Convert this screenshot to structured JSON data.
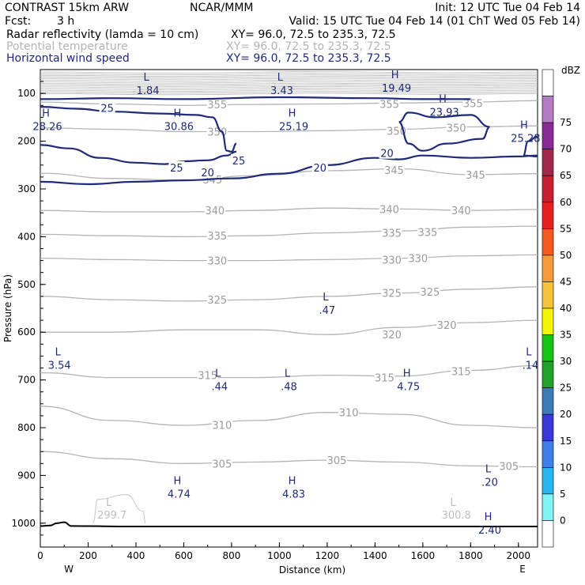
{
  "header": {
    "model": "CONTRAST 15km ARW",
    "center": "NCAR/MMM",
    "init": "Init: 12 UTC Tue 04 Feb 14",
    "fcst_label": "Fcst:",
    "fcst_value": "3 h",
    "valid": "Valid: 15 UTC Tue 04 Feb 14 (01 ChT Wed 05 Feb 14)"
  },
  "fields": [
    {
      "name": "Radar reflectivity (lamda = 10 cm)",
      "xy": "XY=  96.0, 72.5 to 235.3, 72.5",
      "color": "#000000"
    },
    {
      "name": "Potential temperature",
      "xy": "XY=  96.0, 72.5 to 235.3, 72.5",
      "color": "#b4b4b4"
    },
    {
      "name": "Horizontal wind speed",
      "xy": "XY=  96.0, 72.5 to 235.3, 72.5",
      "color": "#1f2a7a"
    }
  ],
  "chart_data": {
    "type": "cross-section contour",
    "xlabel": "Distance (km)",
    "ylabel": "Pressure (hPa)",
    "xlim": [
      0,
      2080
    ],
    "ylim": [
      1050,
      50
    ],
    "xticks": [
      0,
      200,
      400,
      600,
      800,
      1000,
      1200,
      1400,
      1600,
      1800,
      2000
    ],
    "yticks": [
      100,
      200,
      300,
      400,
      500,
      600,
      700,
      800,
      900,
      1000
    ],
    "x_end_labels": {
      "left": "W",
      "right": "E"
    },
    "theta_contours": [
      {
        "label": "305",
        "points": [
          [
            0,
            850
          ],
          [
            300,
            865
          ],
          [
            600,
            875
          ],
          [
            900,
            872
          ],
          [
            1200,
            868
          ],
          [
            1500,
            872
          ],
          [
            1800,
            880
          ],
          [
            2080,
            882
          ]
        ],
        "labels_at": [
          [
            760,
            875
          ],
          [
            1240,
            868
          ],
          [
            1960,
            880
          ]
        ]
      },
      {
        "label": "310",
        "points": [
          [
            0,
            755
          ],
          [
            300,
            785
          ],
          [
            600,
            795
          ],
          [
            900,
            785
          ],
          [
            1200,
            768
          ],
          [
            1500,
            772
          ],
          [
            1800,
            795
          ],
          [
            2080,
            800
          ]
        ],
        "labels_at": [
          [
            760,
            794
          ],
          [
            1290,
            768
          ]
        ]
      },
      {
        "label": "315",
        "points": [
          [
            0,
            685
          ],
          [
            300,
            695
          ],
          [
            600,
            695
          ],
          [
            900,
            695
          ],
          [
            1200,
            690
          ],
          [
            1500,
            692
          ],
          [
            1800,
            680
          ],
          [
            2080,
            670
          ]
        ],
        "labels_at": [
          [
            700,
            690
          ],
          [
            1440,
            695
          ],
          [
            1760,
            682
          ]
        ]
      },
      {
        "label": "320",
        "points": [
          [
            0,
            600
          ],
          [
            300,
            600
          ],
          [
            600,
            595
          ],
          [
            900,
            595
          ],
          [
            1200,
            605
          ],
          [
            1500,
            590
          ],
          [
            1800,
            580
          ],
          [
            2080,
            575
          ]
        ],
        "labels_at": [
          [
            1470,
            605
          ],
          [
            1700,
            585
          ]
        ]
      },
      {
        "label": "325",
        "points": [
          [
            0,
            525
          ],
          [
            300,
            532
          ],
          [
            600,
            535
          ],
          [
            900,
            532
          ],
          [
            1200,
            525
          ],
          [
            1500,
            518
          ],
          [
            1800,
            510
          ],
          [
            2080,
            505
          ]
        ],
        "labels_at": [
          [
            740,
            532
          ],
          [
            1470,
            518
          ],
          [
            1630,
            515
          ]
        ]
      },
      {
        "label": "330",
        "points": [
          [
            0,
            445
          ],
          [
            300,
            448
          ],
          [
            600,
            450
          ],
          [
            900,
            450
          ],
          [
            1200,
            448
          ],
          [
            1500,
            445
          ],
          [
            1800,
            440
          ],
          [
            2080,
            438
          ]
        ],
        "labels_at": [
          [
            740,
            450
          ],
          [
            1470,
            448
          ],
          [
            1580,
            445
          ]
        ]
      },
      {
        "label": "335",
        "points": [
          [
            0,
            395
          ],
          [
            300,
            398
          ],
          [
            600,
            400
          ],
          [
            900,
            398
          ],
          [
            1200,
            392
          ],
          [
            1500,
            388
          ],
          [
            1800,
            380
          ],
          [
            2080,
            378
          ]
        ],
        "labels_at": [
          [
            740,
            398
          ],
          [
            1470,
            392
          ],
          [
            1620,
            390
          ]
        ]
      },
      {
        "label": "340",
        "points": [
          [
            0,
            345
          ],
          [
            300,
            348
          ],
          [
            600,
            348
          ],
          [
            900,
            345
          ],
          [
            1200,
            340
          ],
          [
            1500,
            342
          ],
          [
            1800,
            345
          ],
          [
            2080,
            343
          ]
        ],
        "labels_at": [
          [
            730,
            345
          ],
          [
            1460,
            342
          ],
          [
            1760,
            345
          ]
        ]
      },
      {
        "label": "345",
        "points": [
          [
            0,
            267
          ],
          [
            300,
            278
          ],
          [
            600,
            282
          ],
          [
            900,
            272
          ],
          [
            1200,
            262
          ],
          [
            1500,
            258
          ],
          [
            1800,
            270
          ],
          [
            2080,
            268
          ]
        ],
        "labels_at": [
          [
            720,
            280
          ],
          [
            1480,
            260
          ],
          [
            1820,
            270
          ]
        ]
      },
      {
        "label": "350",
        "points": [
          [
            0,
            172
          ],
          [
            300,
            175
          ],
          [
            600,
            180
          ],
          [
            900,
            180
          ],
          [
            1200,
            178
          ],
          [
            1500,
            175
          ],
          [
            1800,
            170
          ],
          [
            2080,
            168
          ]
        ],
        "labels_at": [
          [
            740,
            180
          ],
          [
            1490,
            178
          ],
          [
            1740,
            172
          ]
        ]
      },
      {
        "label": "355",
        "points": [
          [
            0,
            118
          ],
          [
            300,
            122
          ],
          [
            600,
            125
          ],
          [
            900,
            123
          ],
          [
            1200,
            122
          ],
          [
            1500,
            120
          ],
          [
            1800,
            118
          ],
          [
            2080,
            115
          ]
        ],
        "labels_at": [
          [
            740,
            123
          ],
          [
            1460,
            122
          ],
          [
            1810,
            120
          ]
        ]
      }
    ],
    "wind_contours": [
      {
        "label": "25",
        "labels_at": [
          [
            280,
            130
          ],
          [
            830,
            240
          ],
          [
            570,
            255
          ]
        ]
      },
      {
        "label": "20",
        "labels_at": [
          [
            700,
            265
          ],
          [
            1170,
            255
          ],
          [
            1450,
            225
          ]
        ]
      }
    ],
    "wind_extrema": [
      {
        "type": "L",
        "value": "1.84",
        "x": 450,
        "p": 80
      },
      {
        "type": "L",
        "value": "3.43",
        "x": 1010,
        "p": 80
      },
      {
        "type": "H",
        "value": "19.49",
        "x": 1490,
        "p": 75
      },
      {
        "type": "H",
        "value": "23.93",
        "x": 1690,
        "p": 125
      },
      {
        "type": "H",
        "value": "28.26",
        "x": 30,
        "p": 155
      },
      {
        "type": "H",
        "value": "30.86",
        "x": 580,
        "p": 155
      },
      {
        "type": "H",
        "value": "25.19",
        "x": 1060,
        "p": 155
      },
      {
        "type": "H",
        "value": "25.28",
        "x": 2030,
        "p": 180
      },
      {
        "type": "L",
        "value": ".47",
        "x": 1200,
        "p": 540
      },
      {
        "type": "L",
        "value": "3.54",
        "x": 80,
        "p": 655
      },
      {
        "type": "L",
        "value": ".14",
        "x": 2050,
        "p": 655
      },
      {
        "type": "L",
        "value": ".44",
        "x": 750,
        "p": 700
      },
      {
        "type": "L",
        "value": ".48",
        "x": 1040,
        "p": 700
      },
      {
        "type": "H",
        "value": "4.75",
        "x": 1540,
        "p": 700
      },
      {
        "type": "H",
        "value": "4.74",
        "x": 580,
        "p": 925
      },
      {
        "type": "H",
        "value": "4.83",
        "x": 1060,
        "p": 925
      },
      {
        "type": "L",
        "value": ".20",
        "x": 1880,
        "p": 900
      },
      {
        "type": "H",
        "value": "2.40",
        "x": 1880,
        "p": 1000
      }
    ],
    "theta_extrema": [
      {
        "type": "L",
        "value": "299.7",
        "x": 300,
        "p": 990
      },
      {
        "type": "L",
        "value": "300.8",
        "x": 1740,
        "p": 990
      }
    ],
    "colorbar": {
      "unit": "dBZ",
      "levels": [
        "0",
        "5",
        "10",
        "15",
        "20",
        "25",
        "30",
        "35",
        "40",
        "45",
        "50",
        "55",
        "60",
        "65",
        "70",
        "75"
      ],
      "colors": [
        "#ffffff",
        "#7ff5f5",
        "#29b6f0",
        "#3f7fe8",
        "#3a3ad8",
        "#3c7ab8",
        "#20a32a",
        "#16c416",
        "#f5f500",
        "#f5c23a",
        "#f59a3a",
        "#f55a1e",
        "#e62020",
        "#c81e32",
        "#a0284a",
        "#8a2a98",
        "#b47cc0",
        "#ffffff"
      ]
    }
  }
}
